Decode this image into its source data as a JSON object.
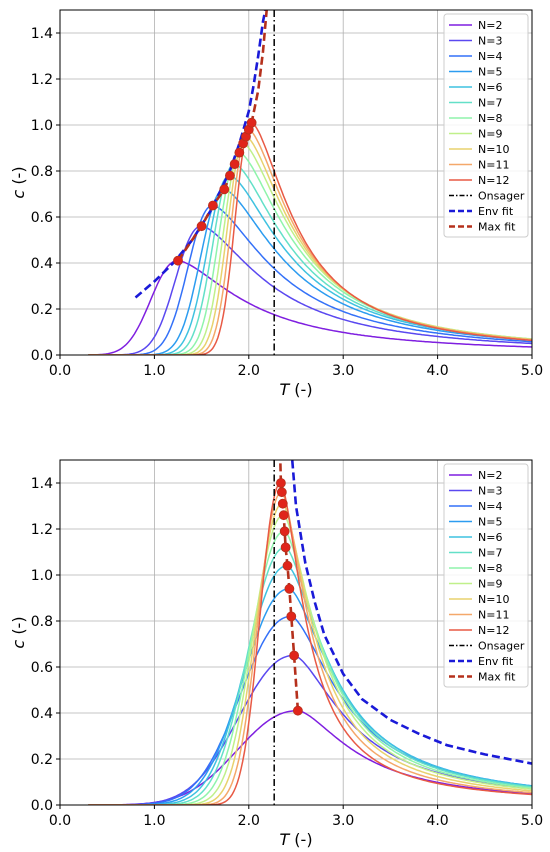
{
  "chart_data": [
    {
      "type": "line",
      "xlabel": "T (-)",
      "ylabel": "c (-)",
      "xlim": [
        0,
        5
      ],
      "ylim": [
        0,
        1.5
      ],
      "x_ticks": [
        "0.0",
        "1.0",
        "2.0",
        "3.0",
        "4.0",
        "5.0"
      ],
      "y_ticks": [
        "0.0",
        "0.2",
        "0.4",
        "0.6",
        "0.8",
        "1.0",
        "1.2",
        "1.4"
      ],
      "grid": true,
      "legend_position": "top-right",
      "series": [
        {
          "name": "N=2",
          "color": "#7f1fe0",
          "peak_T": 1.25,
          "peak_c": 0.41
        },
        {
          "name": "N=3",
          "color": "#5a48f0",
          "peak_T": 1.5,
          "peak_c": 0.56
        },
        {
          "name": "N=4",
          "color": "#3471f8",
          "peak_T": 1.62,
          "peak_c": 0.65
        },
        {
          "name": "N=5",
          "color": "#2c9cf0",
          "peak_T": 1.74,
          "peak_c": 0.72
        },
        {
          "name": "N=6",
          "color": "#3fc2e0",
          "peak_T": 1.8,
          "peak_c": 0.78
        },
        {
          "name": "N=7",
          "color": "#63e0c8",
          "peak_T": 1.85,
          "peak_c": 0.83
        },
        {
          "name": "N=8",
          "color": "#8ff4ab",
          "peak_T": 1.9,
          "peak_c": 0.88
        },
        {
          "name": "N=9",
          "color": "#c0f08a",
          "peak_T": 1.94,
          "peak_c": 0.92
        },
        {
          "name": "N=10",
          "color": "#e8d26e",
          "peak_T": 1.97,
          "peak_c": 0.95
        },
        {
          "name": "N=11",
          "color": "#f4a86a",
          "peak_T": 2.0,
          "peak_c": 0.98
        },
        {
          "name": "N=12",
          "color": "#e85a45",
          "peak_T": 2.03,
          "peak_c": 1.01
        },
        {
          "name": "Onsager",
          "color": "#000000",
          "style": "dashdot",
          "x": 2.269
        },
        {
          "name": "Env fit",
          "color": "#1a1ad8",
          "style": "dashed",
          "x": [
            0.8,
            1.0,
            1.2,
            1.4,
            1.6,
            1.8,
            1.9,
            2.0,
            2.05,
            2.1,
            2.15,
            2.2
          ],
          "y": [
            0.25,
            0.32,
            0.4,
            0.5,
            0.63,
            0.8,
            0.92,
            1.06,
            1.17,
            1.3,
            1.45,
            1.55
          ]
        },
        {
          "name": "Max fit",
          "color": "#b5301c",
          "style": "dashed",
          "x": [
            1.25,
            1.5,
            1.62,
            1.74,
            1.8,
            1.85,
            1.9,
            1.94,
            1.97,
            2.0,
            2.03,
            2.1,
            2.15,
            2.2
          ],
          "y": [
            0.41,
            0.56,
            0.65,
            0.72,
            0.78,
            0.83,
            0.88,
            0.92,
            0.95,
            0.98,
            1.01,
            1.15,
            1.32,
            1.55
          ]
        }
      ]
    },
    {
      "type": "line",
      "xlabel": "T (-)",
      "ylabel": "c (-)",
      "xlim": [
        0,
        5
      ],
      "ylim": [
        0,
        1.5
      ],
      "x_ticks": [
        "0.0",
        "1.0",
        "2.0",
        "3.0",
        "4.0",
        "5.0"
      ],
      "y_ticks": [
        "0.0",
        "0.2",
        "0.4",
        "0.6",
        "0.8",
        "1.0",
        "1.2",
        "1.4"
      ],
      "grid": true,
      "legend_position": "top-right",
      "series": [
        {
          "name": "N=2",
          "color": "#7f1fe0",
          "peak_T": 2.52,
          "peak_c": 0.41
        },
        {
          "name": "N=3",
          "color": "#5a48f0",
          "peak_T": 2.48,
          "peak_c": 0.65
        },
        {
          "name": "N=4",
          "color": "#3471f8",
          "peak_T": 2.45,
          "peak_c": 0.82
        },
        {
          "name": "N=5",
          "color": "#2c9cf0",
          "peak_T": 2.43,
          "peak_c": 0.94
        },
        {
          "name": "N=6",
          "color": "#3fc2e0",
          "peak_T": 2.41,
          "peak_c": 1.04
        },
        {
          "name": "N=7",
          "color": "#63e0c8",
          "peak_T": 2.39,
          "peak_c": 1.12
        },
        {
          "name": "N=8",
          "color": "#8ff4ab",
          "peak_T": 2.38,
          "peak_c": 1.19
        },
        {
          "name": "N=9",
          "color": "#c0f08a",
          "peak_T": 2.37,
          "peak_c": 1.26
        },
        {
          "name": "N=10",
          "color": "#e8d26e",
          "peak_T": 2.36,
          "peak_c": 1.31
        },
        {
          "name": "N=11",
          "color": "#f4a86a",
          "peak_T": 2.35,
          "peak_c": 1.36
        },
        {
          "name": "N=12",
          "color": "#e85a45",
          "peak_T": 2.34,
          "peak_c": 1.4
        },
        {
          "name": "Onsager",
          "color": "#000000",
          "style": "dashdot",
          "x": 2.269
        },
        {
          "name": "Env fit",
          "color": "#1a1ad8",
          "style": "dashed",
          "x": [
            2.45,
            2.5,
            2.6,
            2.7,
            2.8,
            3.0,
            3.2,
            3.5,
            3.8,
            4.1,
            4.5,
            5.0
          ],
          "y": [
            1.55,
            1.3,
            1.05,
            0.88,
            0.74,
            0.57,
            0.46,
            0.37,
            0.31,
            0.26,
            0.22,
            0.18
          ]
        },
        {
          "name": "Max fit",
          "color": "#b5301c",
          "style": "dashed",
          "x": [
            2.52,
            2.48,
            2.45,
            2.43,
            2.41,
            2.39,
            2.38,
            2.37,
            2.36,
            2.35,
            2.34,
            2.33
          ],
          "y": [
            0.41,
            0.65,
            0.82,
            0.94,
            1.04,
            1.12,
            1.19,
            1.26,
            1.31,
            1.36,
            1.4,
            1.55
          ]
        }
      ]
    }
  ]
}
